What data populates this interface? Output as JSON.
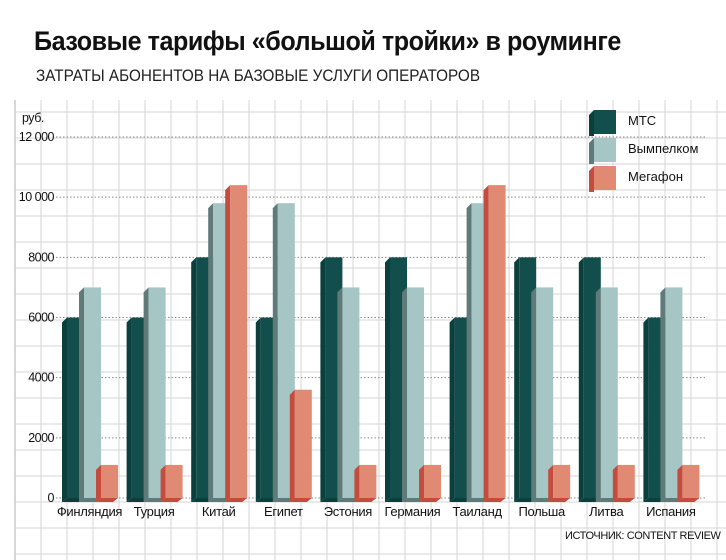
{
  "chart_data": {
    "type": "bar",
    "title": "Базовые тарифы «большой тройки» в роуминге",
    "subtitle": "ЗАТРАТЫ АБОНЕНТОВ НА БАЗОВЫЕ УСЛУГИ ОПЕРАТОРОВ",
    "ylabel": "руб.",
    "xlabel": "",
    "ylim": [
      0,
      12000
    ],
    "yticks": [
      0,
      2000,
      4000,
      6000,
      8000,
      10000,
      12000
    ],
    "ytick_labels": [
      "0",
      "2000",
      "4000",
      "6000",
      "8000",
      "10 000",
      "12 000"
    ],
    "grid": true,
    "legend_position": "top-right",
    "categories": [
      "Финляндия",
      "Турция",
      "Китай",
      "Египет",
      "Эстония",
      "Германия",
      "Таиланд",
      "Польша",
      "Литва",
      "Испания"
    ],
    "series": [
      {
        "name": "МТС",
        "color": "#124f4c",
        "side": "#0b3f3c",
        "values": [
          6000,
          6000,
          8000,
          6000,
          8000,
          8000,
          6000,
          8000,
          8000,
          6000
        ]
      },
      {
        "name": "Вымпелком",
        "color": "#a5c6c4",
        "side": "#5f7a78",
        "values": [
          7000,
          7000,
          9800,
          9800,
          7000,
          7000,
          9800,
          7000,
          7000,
          7000
        ]
      },
      {
        "name": "Мегафон",
        "color": "#e08a74",
        "side": "#c44c3e",
        "values": [
          1100,
          1100,
          10400,
          3600,
          1100,
          1100,
          10400,
          1100,
          1100,
          1100
        ]
      }
    ],
    "source": "ИСТОЧНИК: CONTENT REVIEW"
  }
}
